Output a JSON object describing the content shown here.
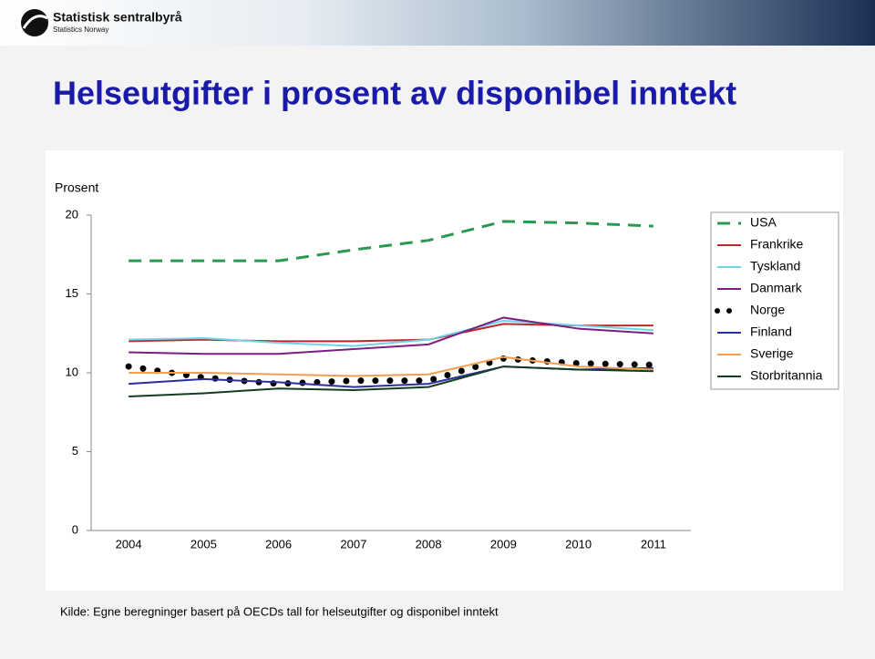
{
  "logo": {
    "name": "Statistisk sentralbyrå",
    "subtitle": "Statistics Norway"
  },
  "chart_data": {
    "type": "line",
    "title": "Helseutgifter i prosent av disponibel inntekt",
    "y_label": "Prosent",
    "source": "Kilde: Egne beregninger basert på OECDs tall for helseutgifter og disponibel inntekt",
    "categories": [
      "2004",
      "2005",
      "2006",
      "2007",
      "2008",
      "2009",
      "2010",
      "2011"
    ],
    "ylim": [
      0,
      20
    ],
    "yticks": [
      0,
      5,
      10,
      15,
      20
    ],
    "grid": false,
    "legend": "right",
    "series": [
      {
        "name": "USA",
        "color": "#2a9a50",
        "style": "dashed",
        "values": [
          17.1,
          17.1,
          17.1,
          17.8,
          18.4,
          19.6,
          19.5,
          19.3
        ]
      },
      {
        "name": "Frankrike",
        "color": "#c0272d",
        "style": "solid",
        "values": [
          12.0,
          12.1,
          12.0,
          12.0,
          12.1,
          13.1,
          13.0,
          13.0
        ]
      },
      {
        "name": "Tyskland",
        "color": "#6fd3e8",
        "style": "solid",
        "values": [
          12.1,
          12.2,
          11.9,
          11.7,
          12.1,
          13.3,
          13.0,
          12.7
        ]
      },
      {
        "name": "Danmark",
        "color": "#7b1f80",
        "style": "solid",
        "values": [
          11.3,
          11.2,
          11.2,
          11.5,
          11.8,
          13.5,
          12.8,
          12.5
        ]
      },
      {
        "name": "Norge",
        "color": "#000000",
        "style": "dotted",
        "values": [
          10.4,
          9.7,
          9.3,
          9.5,
          9.5,
          10.9,
          10.6,
          10.5
        ]
      },
      {
        "name": "Finland",
        "color": "#2b2f9e",
        "style": "solid",
        "values": [
          9.3,
          9.6,
          9.4,
          9.1,
          9.3,
          10.4,
          10.2,
          10.3
        ]
      },
      {
        "name": "Sverige",
        "color": "#f0a050",
        "style": "solid",
        "values": [
          10.0,
          10.0,
          9.9,
          9.8,
          9.9,
          11.0,
          10.4,
          10.2
        ]
      },
      {
        "name": "Storbritannia",
        "color": "#143d20",
        "style": "solid",
        "values": [
          8.5,
          8.7,
          9.0,
          8.9,
          9.1,
          10.4,
          10.2,
          10.1
        ]
      }
    ]
  }
}
